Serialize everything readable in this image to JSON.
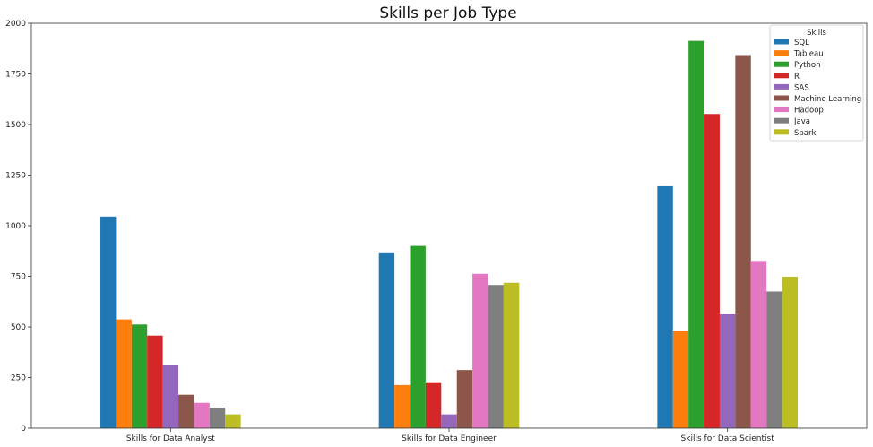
{
  "chart_data": {
    "type": "bar",
    "title": "Skills per Job Type",
    "xlabel": "",
    "ylabel": "",
    "categories": [
      "Skills for Data Analyst",
      "Skills for Data Engineer",
      "Skills for Data Scientist"
    ],
    "ylim": [
      0,
      2000
    ],
    "yticks": [
      "0",
      "250",
      "500",
      "750",
      "1000",
      "1250",
      "1500",
      "1750",
      "2000"
    ],
    "grid": false,
    "legend": {
      "title": "Skills",
      "placement": "top-right"
    },
    "series": [
      {
        "name": "SQL",
        "color": "#1f77b4",
        "values": [
          1045,
          868,
          1195
        ]
      },
      {
        "name": "Tableau",
        "color": "#ff7f0e",
        "values": [
          537,
          213,
          482
        ]
      },
      {
        "name": "Python",
        "color": "#2ca02c",
        "values": [
          512,
          900,
          1913
        ]
      },
      {
        "name": "R",
        "color": "#d62728",
        "values": [
          457,
          227,
          1552
        ]
      },
      {
        "name": "SAS",
        "color": "#9467bd",
        "values": [
          310,
          68,
          565
        ]
      },
      {
        "name": "Machine Learning",
        "color": "#8c564b",
        "values": [
          165,
          287,
          1843
        ]
      },
      {
        "name": "Hadoop",
        "color": "#e377c2",
        "values": [
          125,
          762,
          826
        ]
      },
      {
        "name": "Java",
        "color": "#7f7f7f",
        "values": [
          102,
          707,
          675
        ]
      },
      {
        "name": "Spark",
        "color": "#bcbd22",
        "values": [
          68,
          718,
          748
        ]
      }
    ]
  }
}
